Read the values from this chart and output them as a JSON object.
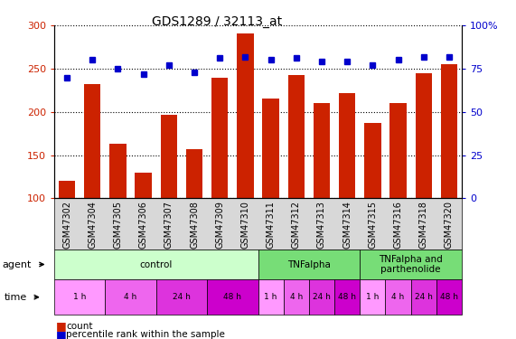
{
  "title": "GDS1289 / 32113_at",
  "samples": [
    "GSM47302",
    "GSM47304",
    "GSM47305",
    "GSM47306",
    "GSM47307",
    "GSM47308",
    "GSM47309",
    "GSM47310",
    "GSM47311",
    "GSM47312",
    "GSM47313",
    "GSM47314",
    "GSM47315",
    "GSM47316",
    "GSM47318",
    "GSM47320"
  ],
  "counts": [
    120,
    232,
    163,
    130,
    197,
    157,
    240,
    291,
    215,
    243,
    210,
    222,
    187,
    210,
    245,
    255
  ],
  "percentiles": [
    70,
    80,
    75,
    72,
    77,
    73,
    81,
    82,
    80,
    81,
    79,
    79,
    77,
    80,
    82,
    82
  ],
  "bar_color": "#cc2200",
  "dot_color": "#0000cc",
  "ylim_left": [
    100,
    300
  ],
  "ylim_right": [
    0,
    100
  ],
  "yticks_left": [
    100,
    150,
    200,
    250,
    300
  ],
  "yticks_right": [
    0,
    25,
    50,
    75,
    100
  ],
  "yticklabels_right": [
    "0",
    "25",
    "50",
    "75",
    "100%"
  ],
  "agent_info": [
    {
      "label": "control",
      "start": 0,
      "end": 8,
      "color": "#ccffcc"
    },
    {
      "label": "TNFalpha",
      "start": 8,
      "end": 12,
      "color": "#77dd77"
    },
    {
      "label": "TNFalpha and\nparthenolide",
      "start": 12,
      "end": 16,
      "color": "#77dd77"
    }
  ],
  "time_groups": [
    {
      "label": "1 h",
      "start": 0,
      "end": 2,
      "color": "#ff99ff"
    },
    {
      "label": "4 h",
      "start": 2,
      "end": 4,
      "color": "#ee66ee"
    },
    {
      "label": "24 h",
      "start": 4,
      "end": 6,
      "color": "#dd33dd"
    },
    {
      "label": "48 h",
      "start": 6,
      "end": 8,
      "color": "#cc00cc"
    },
    {
      "label": "1 h",
      "start": 8,
      "end": 9,
      "color": "#ff99ff"
    },
    {
      "label": "4 h",
      "start": 9,
      "end": 10,
      "color": "#ee66ee"
    },
    {
      "label": "24 h",
      "start": 10,
      "end": 11,
      "color": "#dd33dd"
    },
    {
      "label": "48 h",
      "start": 11,
      "end": 12,
      "color": "#cc00cc"
    },
    {
      "label": "1 h",
      "start": 12,
      "end": 13,
      "color": "#ff99ff"
    },
    {
      "label": "4 h",
      "start": 13,
      "end": 14,
      "color": "#ee66ee"
    },
    {
      "label": "24 h",
      "start": 14,
      "end": 15,
      "color": "#dd33dd"
    },
    {
      "label": "48 h",
      "start": 15,
      "end": 16,
      "color": "#cc00cc"
    }
  ],
  "label_bg_color": "#d8d8d8",
  "fig_width": 5.71,
  "fig_height": 3.75,
  "dpi": 100
}
